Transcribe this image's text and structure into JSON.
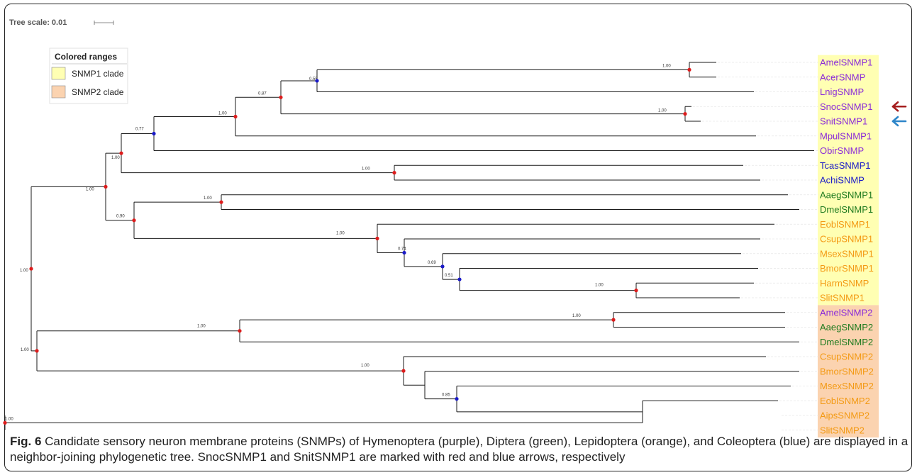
{
  "scale_bar": {
    "label": "Tree scale: 0.01"
  },
  "legend": {
    "title": "Colored ranges",
    "items": [
      {
        "label": "SNMP1 clade",
        "color": "#ffffb3"
      },
      {
        "label": "SNMP2 clade",
        "color": "#fbd3b0"
      }
    ]
  },
  "colors": {
    "Hymenoptera": "#8a2bd8",
    "Diptera": "#1e7a1e",
    "Lepidoptera": "#f39a14",
    "Coleoptera": "#1a1ac8",
    "node_high": "#dd1c1c",
    "node_low": "#1a1ac8",
    "arrow_red": "#a51d1d",
    "arrow_blue": "#2e86c9"
  },
  "tips": [
    {
      "name": "AmelSNMP1",
      "group": "Hymenoptera",
      "clade": "SNMP1"
    },
    {
      "name": "AcerSNMP",
      "group": "Hymenoptera",
      "clade": "SNMP1"
    },
    {
      "name": "LnigSNMP",
      "group": "Hymenoptera",
      "clade": "SNMP1"
    },
    {
      "name": "SnocSNMP1",
      "group": "Hymenoptera",
      "clade": "SNMP1",
      "arrow": "red"
    },
    {
      "name": "SnitSNMP1",
      "group": "Hymenoptera",
      "clade": "SNMP1",
      "arrow": "blue"
    },
    {
      "name": "MpulSNMP1",
      "group": "Hymenoptera",
      "clade": "SNMP1"
    },
    {
      "name": "ObirSNMP",
      "group": "Hymenoptera",
      "clade": "SNMP1"
    },
    {
      "name": "TcasSNMP1",
      "group": "Coleoptera",
      "clade": "SNMP1"
    },
    {
      "name": "AchiSNMP",
      "group": "Coleoptera",
      "clade": "SNMP1"
    },
    {
      "name": "AaegSNMP1",
      "group": "Diptera",
      "clade": "SNMP1"
    },
    {
      "name": "DmelSNMP1",
      "group": "Diptera",
      "clade": "SNMP1"
    },
    {
      "name": "EoblSNMP1",
      "group": "Lepidoptera",
      "clade": "SNMP1"
    },
    {
      "name": "CsupSNMP1",
      "group": "Lepidoptera",
      "clade": "SNMP1"
    },
    {
      "name": "MsexSNMP1",
      "group": "Lepidoptera",
      "clade": "SNMP1"
    },
    {
      "name": "BmorSNMP1",
      "group": "Lepidoptera",
      "clade": "SNMP1"
    },
    {
      "name": "HarmSNMP",
      "group": "Lepidoptera",
      "clade": "SNMP1"
    },
    {
      "name": "SlitSNMP1",
      "group": "Lepidoptera",
      "clade": "SNMP1"
    },
    {
      "name": "AmelSNMP2",
      "group": "Hymenoptera",
      "clade": "SNMP2"
    },
    {
      "name": "AaegSNMP2",
      "group": "Diptera",
      "clade": "SNMP2"
    },
    {
      "name": "DmelSNMP2",
      "group": "Diptera",
      "clade": "SNMP2"
    },
    {
      "name": "CsupSNMP2",
      "group": "Lepidoptera",
      "clade": "SNMP2"
    },
    {
      "name": "BmorSNMP2",
      "group": "Lepidoptera",
      "clade": "SNMP2"
    },
    {
      "name": "MsexSNMP2",
      "group": "Lepidoptera",
      "clade": "SNMP2"
    },
    {
      "name": "EoblSNMP2",
      "group": "Lepidoptera",
      "clade": "SNMP2"
    },
    {
      "name": "AipsSNMP2",
      "group": "Lepidoptera",
      "clade": "SNMP2"
    },
    {
      "name": "SlitSNMP2",
      "group": "Lepidoptera",
      "clade": "SNMP2"
    }
  ],
  "tree": {
    "support": "1.00",
    "children": [
      {
        "support": "1.00",
        "children": [
          {
            "support": "1.00",
            "children": [
              {
                "support": "0.77",
                "children": [
                  {
                    "support": "1.00",
                    "children": [
                      {
                        "support": "0.87",
                        "children": [
                          {
                            "support": "0.55",
                            "children": [
                              {
                                "support": "1.00",
                                "children": [
                                  {
                                    "tip": 0
                                  },
                                  {
                                    "tip": 1
                                  }
                                ]
                              },
                              {
                                "tip": 2
                              }
                            ]
                          },
                          {
                            "support": "1.00",
                            "children": [
                              {
                                "tip": 3
                              },
                              {
                                "tip": 4
                              }
                            ]
                          }
                        ]
                      },
                      {
                        "tip": 5
                      }
                    ]
                  },
                  {
                    "tip": 6
                  }
                ]
              },
              {
                "support": "1.00",
                "children": [
                  {
                    "tip": 7
                  },
                  {
                    "tip": 8
                  }
                ]
              }
            ]
          },
          {
            "support": "0.90",
            "children": [
              {
                "support": "1.00",
                "children": [
                  {
                    "tip": 9
                  },
                  {
                    "tip": 10
                  }
                ]
              },
              {
                "support": "1.00",
                "children": [
                  {
                    "tip": 11
                  },
                  {
                    "support": "0.74",
                    "children": [
                      {
                        "tip": 12
                      },
                      {
                        "support": "0.69",
                        "children": [
                          {
                            "tip": 13
                          },
                          {
                            "support": "0.51",
                            "children": [
                              {
                                "tip": 14
                              },
                              {
                                "support": "1.00",
                                "children": [
                                  {
                                    "tip": 15
                                  },
                                  {
                                    "tip": 16
                                  }
                                ]
                              }
                            ]
                          }
                        ]
                      }
                    ]
                  }
                ]
              }
            ]
          }
        ]
      },
      {
        "support": "1.00",
        "children": [
          {
            "support": "1.00",
            "children": [
              {
                "support": "1.00",
                "children": [
                  {
                    "tip": 17
                  },
                  {
                    "tip": 18
                  }
                ]
              },
              {
                "tip": 19
              }
            ]
          },
          {
            "support": "1.00",
            "children": [
              {
                "tip": 20
              },
              {
                "children": [
                  {
                    "tip": 21
                  },
                  {
                    "support": "0.85",
                    "children": [
                      {
                        "tip": 22
                      },
                      {
                        "children": [
                          {
                            "tip": 23
                          },
                          {
                            "support": "1.00",
                            "children": [
                              {
                                "tip": 24
                              },
                              {
                                "tip": 25
                              }
                            ]
                          }
                        ]
                      }
                    ]
                  }
                ]
              }
            ]
          }
        ]
      }
    ]
  },
  "caption": {
    "label": "Fig. 6",
    "text": " Candidate sensory neuron membrane proteins (SNMPs) of Hymenoptera (purple), Diptera (green), Lepidoptera (orange), and Coleoptera (blue) are displayed in a neighbor-joining phylogenetic tree. SnocSNMP1 and SnitSNMP1 are marked with red and blue arrows, respectively"
  }
}
